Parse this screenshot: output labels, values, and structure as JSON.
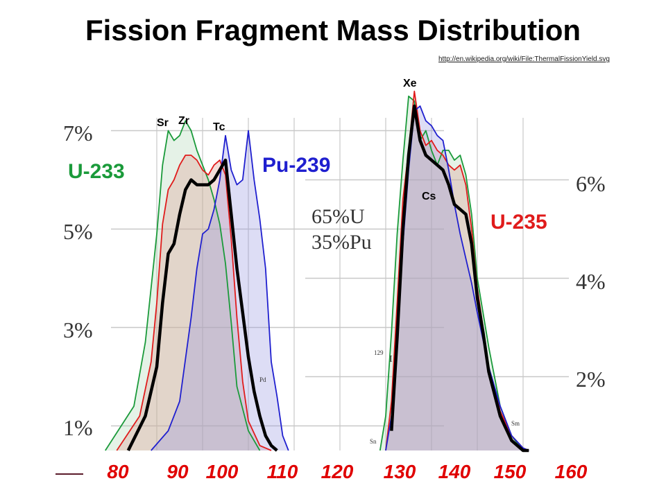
{
  "title": "Fission Fragment Mass Distribution",
  "source_link": "http://en.wikipedia.org/wiki/File:ThermalFissionYield.svg",
  "colors": {
    "u233": "#1a9a3a",
    "u235": "#e01b1b",
    "pu239": "#1f1fcf",
    "mix": "#000000",
    "tick": "#e00000"
  },
  "labels": {
    "u233": "U-233",
    "pu239": "Pu-239",
    "u235": "U-235",
    "mix_line1": "65%U",
    "mix_line2": "35%Pu",
    "elements": {
      "sr": "Sr",
      "zr": "Zr",
      "tc": "Tc",
      "xe": "Xe",
      "cs": "Cs"
    },
    "small_isotopes": {
      "i129": "129",
      "i129b": "I",
      "pd": "Pd",
      "sn": "Sn",
      "sm": "Sm"
    }
  },
  "chart_data": {
    "type": "area",
    "xlabel": "",
    "ylabel": "",
    "x_ticks": [
      "80",
      "90",
      "100",
      "110",
      "120",
      "130",
      "140",
      "150",
      "160"
    ],
    "y_left_ticks": [
      "1%",
      "3%",
      "5%",
      "7%"
    ],
    "y_right_ticks": [
      "2%",
      "4%",
      "6%"
    ],
    "xlim": [
      79,
      157
    ],
    "ylim": [
      0.5,
      7.5
    ],
    "series": [
      {
        "name": "U-233",
        "x": [
          79,
          84,
          86,
          88,
          89,
          90,
          91,
          92,
          93,
          94,
          95,
          96,
          97,
          98,
          99,
          100,
          101,
          102,
          104,
          106,
          127,
          128,
          129,
          130,
          131,
          132,
          133,
          134,
          135,
          136,
          137,
          138,
          139,
          140,
          141,
          142,
          143,
          144,
          146,
          148,
          150,
          152
        ],
        "y": [
          0.5,
          1.4,
          2.7,
          4.9,
          6.3,
          7.0,
          6.8,
          6.9,
          7.2,
          7.0,
          6.6,
          6.3,
          6.0,
          5.6,
          5.1,
          4.3,
          3.1,
          1.8,
          0.9,
          0.5,
          0.5,
          1.2,
          2.9,
          4.9,
          6.4,
          7.7,
          7.6,
          6.8,
          7.0,
          6.6,
          6.3,
          6.6,
          6.6,
          6.4,
          6.5,
          6.1,
          5.3,
          4.0,
          2.6,
          1.4,
          0.8,
          0.5
        ]
      },
      {
        "name": "U-235",
        "x": [
          81,
          85,
          87,
          88,
          89,
          90,
          91,
          92,
          93,
          94,
          95,
          96,
          97,
          98,
          99,
          100,
          101,
          102,
          103,
          104,
          106,
          108,
          128,
          129,
          130,
          131,
          132,
          133,
          134,
          135,
          136,
          137,
          138,
          139,
          140,
          141,
          142,
          143,
          144,
          145,
          146,
          148,
          150,
          152,
          153
        ],
        "y": [
          0.5,
          1.2,
          2.3,
          3.5,
          5.1,
          5.8,
          6.0,
          6.3,
          6.5,
          6.5,
          6.4,
          6.2,
          6.1,
          6.3,
          6.4,
          6.1,
          4.8,
          3.2,
          1.9,
          1.1,
          0.6,
          0.5,
          0.5,
          1.5,
          3.5,
          5.6,
          6.6,
          7.8,
          7.0,
          6.7,
          6.8,
          6.6,
          6.5,
          6.3,
          6.2,
          6.3,
          5.9,
          5.0,
          3.8,
          3.0,
          2.2,
          1.3,
          0.8,
          0.55,
          0.5
        ]
      },
      {
        "name": "Pu-239",
        "x": [
          87,
          90,
          92,
          94,
          95,
          96,
          97,
          98,
          99,
          100,
          101,
          102,
          103,
          104,
          105,
          106,
          107,
          108,
          109,
          110,
          111,
          128,
          129,
          130,
          131,
          132,
          133,
          134,
          135,
          136,
          137,
          138,
          139,
          140,
          141,
          142,
          143,
          144,
          146,
          148,
          150,
          152,
          153
        ],
        "y": [
          0.5,
          0.9,
          1.5,
          3.2,
          4.2,
          4.9,
          5.0,
          5.4,
          6.0,
          6.9,
          6.2,
          5.9,
          6.0,
          7.0,
          6.0,
          5.2,
          4.2,
          2.3,
          1.6,
          0.8,
          0.5,
          0.5,
          1.2,
          2.6,
          4.7,
          6.2,
          7.4,
          7.5,
          7.2,
          7.1,
          6.9,
          6.8,
          6.2,
          5.5,
          4.9,
          4.4,
          3.9,
          3.3,
          2.2,
          1.4,
          0.8,
          0.55,
          0.5
        ]
      },
      {
        "name": "65%U 35%Pu",
        "x": [
          83,
          86,
          88,
          89,
          90,
          91,
          92,
          93,
          94,
          95,
          96,
          97,
          98,
          99,
          100,
          101,
          102,
          103,
          104,
          105,
          106,
          107,
          108,
          109,
          129,
          130,
          131,
          132,
          133,
          134,
          135,
          136,
          137,
          138,
          139,
          140,
          141,
          142,
          143,
          144,
          145,
          146,
          148,
          150,
          152,
          153
        ],
        "y": [
          0.5,
          1.2,
          2.2,
          3.5,
          4.5,
          4.7,
          5.3,
          5.8,
          6.0,
          5.9,
          5.9,
          5.9,
          6.0,
          6.2,
          6.4,
          5.3,
          4.2,
          3.3,
          2.4,
          1.7,
          1.2,
          0.8,
          0.6,
          0.5,
          0.9,
          2.8,
          5.0,
          6.5,
          7.5,
          6.8,
          6.5,
          6.4,
          6.3,
          6.2,
          5.9,
          5.5,
          5.4,
          5.3,
          4.7,
          3.6,
          2.9,
          2.1,
          1.2,
          0.7,
          0.5,
          0.5
        ]
      }
    ]
  }
}
